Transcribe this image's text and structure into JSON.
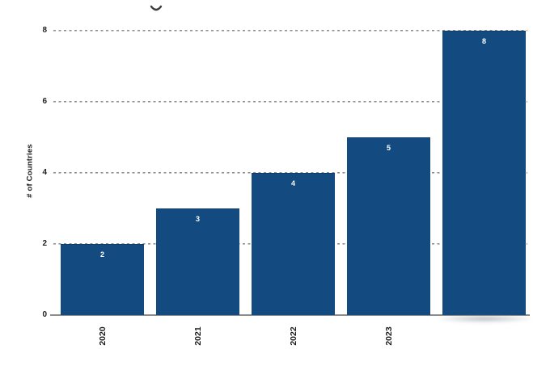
{
  "chart_data": {
    "type": "bar",
    "title": "",
    "categories": [
      "2020",
      "2021",
      "2022",
      "2023",
      ""
    ],
    "values": [
      2,
      3,
      4,
      5,
      8
    ],
    "bar_value_labels": [
      "2",
      "3",
      "4",
      "5",
      "8"
    ],
    "xlabel": "",
    "ylabel": "# of Countries",
    "ylim": [
      0,
      8
    ],
    "yticks": [
      0,
      2,
      4,
      6,
      8
    ],
    "ytick_labels": [
      "0",
      "2",
      "4",
      "6",
      "8"
    ],
    "grid": "horizontal-dashed",
    "legend": "none",
    "colors": {
      "bar_fill": "#134a7f",
      "bar_value_label": "#ffffff",
      "gridline": "#8f8f8f",
      "axis_baseline": "#8c8c8c",
      "tick_text": "#1a1a1a",
      "background": "#ffffff"
    }
  }
}
